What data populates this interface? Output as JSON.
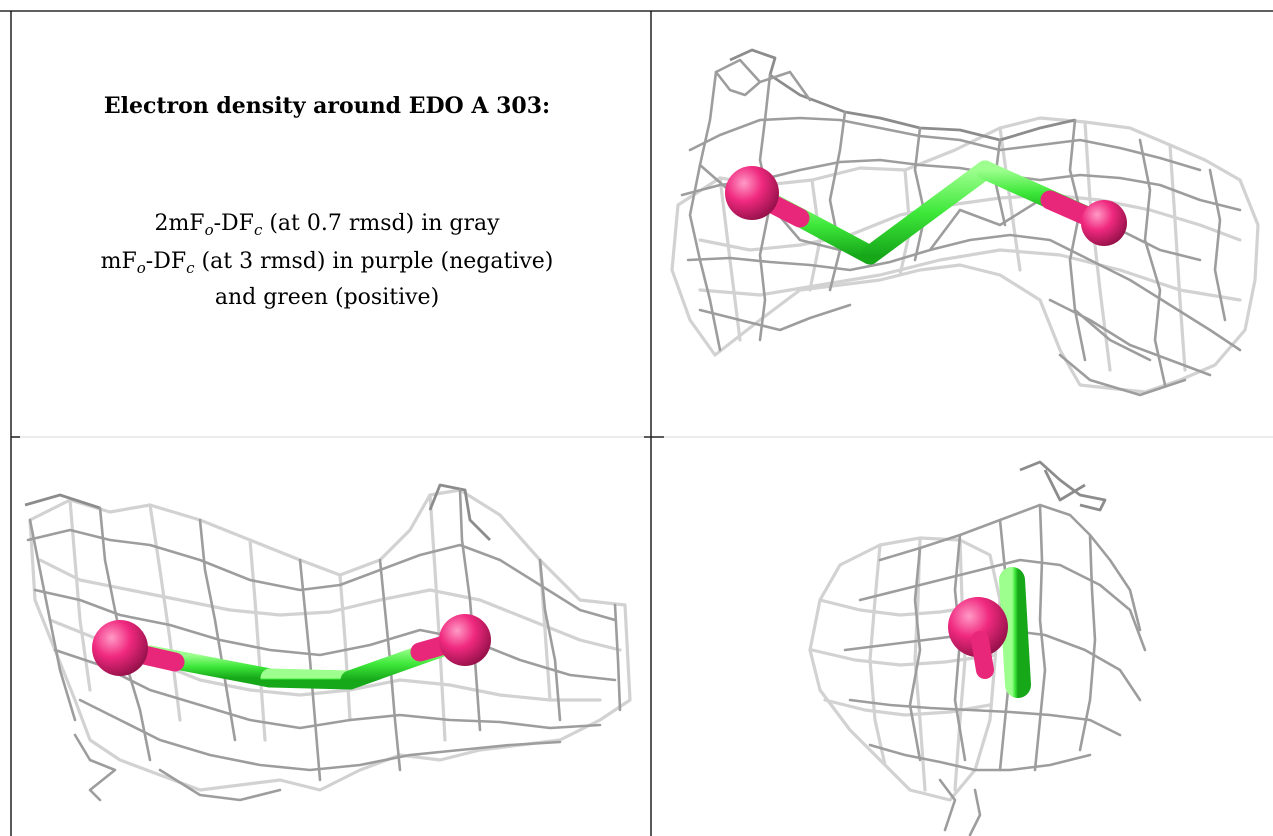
{
  "header": {
    "title": "Electron density around EDO A 303:",
    "legend_lines": [
      {
        "main": "2mF",
        "sub1": "o",
        "mid": "-DF",
        "sub2": "c",
        "rest": " (at 0.7 rmsd) in gray"
      },
      {
        "main": "mF",
        "sub1": "o",
        "mid": "-DF",
        "sub2": "c",
        "rest": " (at 3 rmsd) in purple (negative)"
      },
      {
        "main": "and green (positive)"
      }
    ]
  },
  "colors": {
    "mesh_light": "#d2d2d2",
    "mesh_dark": "#9d9d9d",
    "oxygen": "#f0297f",
    "carbon_bond": "#3ee83a",
    "border": "#000000"
  },
  "panels": [
    {
      "id": "view-1",
      "atoms": [
        "oxygen",
        "oxygen"
      ],
      "bonds": [
        "carbon",
        "carbon",
        "carbon"
      ]
    },
    {
      "id": "view-2",
      "atoms": [
        "oxygen",
        "oxygen"
      ],
      "bonds": [
        "carbon",
        "carbon",
        "carbon"
      ]
    },
    {
      "id": "view-3",
      "atoms": [
        "oxygen"
      ],
      "bonds": [
        "carbon"
      ]
    }
  ]
}
